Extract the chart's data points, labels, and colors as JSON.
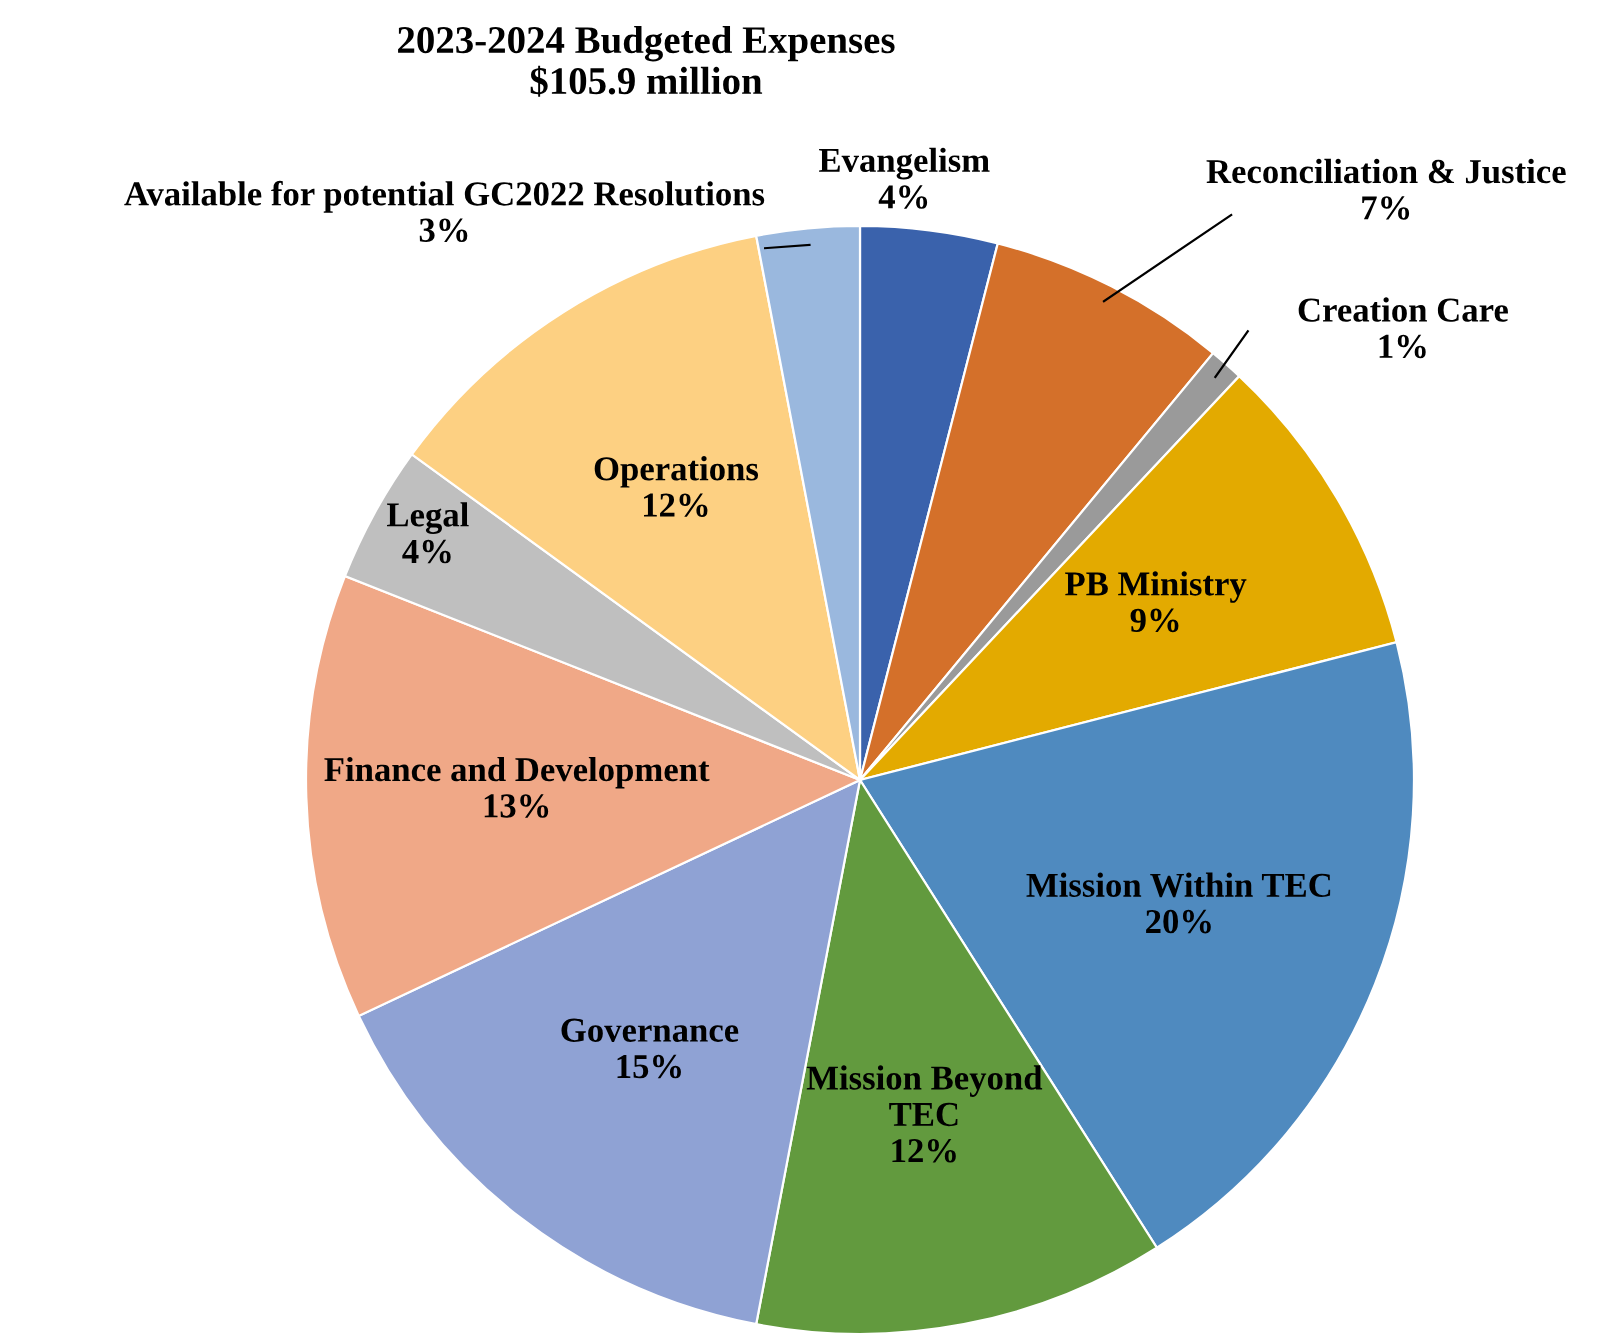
{
  "chart_data": {
    "type": "pie",
    "title": "2023-2024 Budgeted Expenses\n$105.9 million",
    "categories": [
      "Evangelism",
      "Reconciliation & Justice",
      "Creation Care",
      "PB Ministry",
      "Mission Within TEC",
      "Mission Beyond\nTEC",
      "Governance",
      "Finance and Development",
      "Legal",
      "Operations",
      "Available for potential GC2022 Resolutions"
    ],
    "values": [
      4,
      7,
      1,
      9,
      20,
      12,
      15,
      13,
      4,
      12,
      3
    ],
    "colors": [
      "#3a62ac",
      "#d4702a",
      "#9a9a9a",
      "#e3aa00",
      "#4f8abf",
      "#629a3e",
      "#8fa2d4",
      "#f0a887",
      "#bfbfbf",
      "#fdd082",
      "#9ab8de"
    ],
    "value_labels": [
      "4%",
      "7%",
      "1%",
      "9%",
      "20%",
      "12%",
      "15%",
      "13%",
      "4%",
      "12%",
      "3%"
    ],
    "legend": false
  }
}
